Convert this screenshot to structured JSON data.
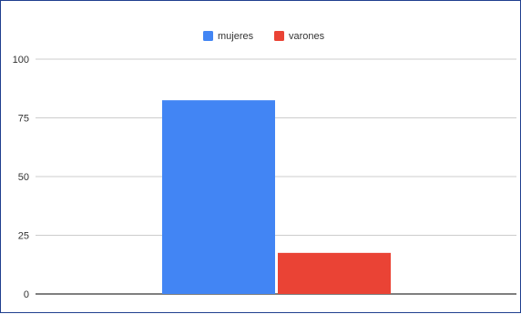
{
  "chart_data": {
    "type": "bar",
    "categories": [
      ""
    ],
    "series": [
      {
        "name": "mujeres",
        "values": [
          82.5
        ],
        "color": "#4285f4"
      },
      {
        "name": "varones",
        "values": [
          17.5
        ],
        "color": "#ea4335"
      }
    ],
    "ylim": [
      0,
      100
    ],
    "yticks": [
      "0",
      "25",
      "50",
      "75",
      "100"
    ],
    "grid": true,
    "legend": "top-center",
    "axis_color": "#333333",
    "grid_color": "#cccccc"
  }
}
